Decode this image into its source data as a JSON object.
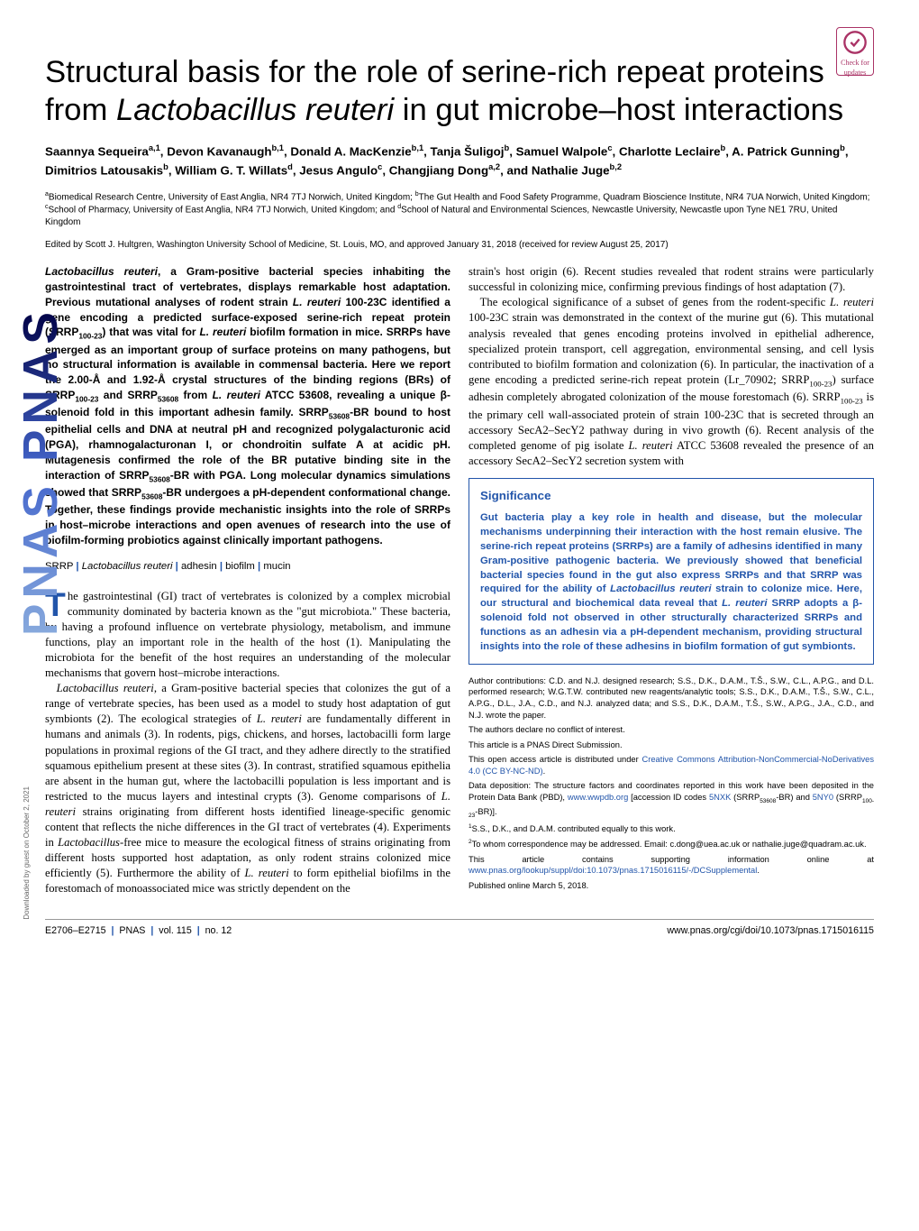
{
  "badge": {
    "line1": "Check for",
    "line2": "updates"
  },
  "pnas_band": "PNAS  PNAS",
  "title_parts": {
    "pre": "Structural basis for the role of serine-rich repeat proteins from ",
    "italic": "Lactobacillus reuteri",
    "post": " in gut microbe–host interactions"
  },
  "authors_html": "Saannya Sequeira<sup>a,1</sup>, Devon Kavanaugh<sup>b,1</sup>, Donald A. MacKenzie<sup>b,1</sup>, Tanja Šuligoj<sup>b</sup>, Samuel Walpole<sup>c</sup>, Charlotte Leclaire<sup>b</sup>, A. Patrick Gunning<sup>b</sup>, Dimitrios Latousakis<sup>b</sup>, William G. T. Willats<sup>d</sup>, Jesus Angulo<sup>c</sup>, Changjiang Dong<sup>a,2</sup>, and Nathalie Juge<sup>b,2</sup>",
  "affiliations_html": "<sup>a</sup>Biomedical Research Centre, University of East Anglia, NR4 7TJ Norwich, United Kingdom; <sup>b</sup>The Gut Health and Food Safety Programme, Quadram Bioscience Institute, NR4 7UA Norwich, United Kingdom; <sup>c</sup>School of Pharmacy, University of East Anglia, NR4 7TJ Norwich, United Kingdom; and <sup>d</sup>School of Natural and Environmental Sciences, Newcastle University, Newcastle upon Tyne NE1 7RU, United Kingdom",
  "edited": "Edited by Scott J. Hultgren, Washington University School of Medicine, St. Louis, MO, and approved January 31, 2018 (received for review August 25, 2017)",
  "abstract_html": "<span class=\"italic\">Lactobacillus reuteri</span>, a Gram-positive bacterial species inhabiting the gastrointestinal tract of vertebrates, displays remarkable host adaptation. Previous mutational analyses of rodent strain <span class=\"italic\">L. reuteri</span> 100-23C identified a gene encoding a predicted surface-exposed serine-rich repeat protein (SRRP<sub>100-23</sub>) that was vital for <span class=\"italic\">L. reuteri</span> biofilm formation in mice. SRRPs have emerged as an important group of surface proteins on many pathogens, but no structural information is available in commensal bacteria. Here we report the 2.00-Å and 1.92-Å crystal structures of the binding regions (BRs) of SRRP<sub>100-23</sub> and SRRP<sub>53608</sub> from <span class=\"italic\">L. reuteri</span> ATCC 53608, revealing a unique β-solenoid fold in this important adhesin family. SRRP<sub>53608</sub>-BR bound to host epithelial cells and DNA at neutral pH and recognized polygalacturonic acid (PGA), rhamnogalacturonan I, or chondroitin sulfate A at acidic pH. Mutagenesis confirmed the role of the BR putative binding site in the interaction of SRRP<sub>53608</sub>-BR with PGA. Long molecular dynamics simulations showed that SRRP<sub>53608</sub>-BR undergoes a pH-dependent conformational change. Together, these findings provide mechanistic insights into the role of SRRPs in host–microbe interactions and open avenues of research into the use of biofilm-forming probiotics against clinically important pathogens.",
  "keywords_html": "SRRP <span class=\"pipe\">|</span> <span class=\"italic\">Lactobacillus reuteri</span> <span class=\"pipe\">|</span> adhesin <span class=\"pipe\">|</span> biofilm <span class=\"pipe\">|</span> mucin",
  "body_left_html": "<p class=\"first\"><span class=\"dropcap\">T</span>he gastrointestinal (GI) tract of vertebrates is colonized by a complex microbial community dominated by bacteria known as the \"gut microbiota.\" These bacteria, by having a profound influence on vertebrate physiology, metabolism, and immune functions, play an important role in the health of the host (1). Manipulating the microbiota for the benefit of the host requires an understanding of the molecular mechanisms that govern host–microbe interactions.</p><p><span class=\"italic\">Lactobacillus reuteri</span>, a Gram-positive bacterial species that colonizes the gut of a range of vertebrate species, has been used as a model to study host adaptation of gut symbionts (2). The ecological strategies of <span class=\"italic\">L. reuteri</span> are fundamentally different in humans and animals (3). In rodents, pigs, chickens, and horses, lactobacilli form large populations in proximal regions of the GI tract, and they adhere directly to the stratified squamous epithelium present at these sites (3). In contrast, stratified squamous epithelia are absent in the human gut, where the lactobacilli population is less important and is restricted to the mucus layers and intestinal crypts (3). Genome comparisons of <span class=\"italic\">L. reuteri</span> strains originating from different hosts identified lineage-specific genomic content that reflects the niche differences in the GI tract of vertebrates (4). Experiments in <span class=\"italic\">Lactobacillus</span>-free mice to measure the ecological fitness of strains originating from different hosts supported host adaptation, as only rodent strains colonized mice efficiently (5). Furthermore the ability of <span class=\"italic\">L. reuteri</span> to form epithelial biofilms in the forestomach of monoassociated mice was strictly dependent on the</p>",
  "body_right_html": "strain's host origin (6). Recent studies revealed that rodent strains were particularly successful in colonizing mice, confirming previous findings of host adaptation (7).<p>The ecological significance of a subset of genes from the rodent-specific <span class=\"italic\">L. reuteri</span> 100-23C strain was demonstrated in the context of the murine gut (6). This mutational analysis revealed that genes encoding proteins involved in epithelial adherence, specialized protein transport, cell aggregation, environmental sensing, and cell lysis contributed to biofilm formation and colonization (6). In particular, the inactivation of a gene encoding a predicted serine-rich repeat protein (Lr_70902; SRRP<sub>100-23</sub>) surface adhesin completely abrogated colonization of the mouse forestomach (6). SRRP<sub>100-23</sub> is the primary cell wall-associated protein of strain 100-23C that is secreted through an accessory SecA2–SecY2 pathway during in vivo growth (6). Recent analysis of the completed genome of pig isolate <span class=\"italic\">L. reuteri</span> ATCC 53608 revealed the presence of an accessory SecA2–SecY2 secretion system with</p>",
  "significance": {
    "heading": "Significance",
    "text_html": "Gut bacteria play a key role in health and disease, but the molecular mechanisms underpinning their interaction with the host remain elusive. The serine-rich repeat proteins (SRRPs) are a family of adhesins identified in many Gram-positive pathogenic bacteria. We previously showed that beneficial bacterial species found in the gut also express SRRPs and that SRRP was required for the ability of <span class=\"italic\">Lactobacillus reuteri</span> strain to colonize mice. Here, our structural and biochemical data reveal that <span class=\"italic\">L. reuteri</span> SRRP adopts a β-solenoid fold not observed in other structurally characterized SRRPs and functions as an adhesin via a pH-dependent mechanism, providing structural insights into the role of these adhesins in biofilm formation of gut symbionts."
  },
  "notes": {
    "contributions": "Author contributions: C.D. and N.J. designed research; S.S., D.K., D.A.M., T.Š., S.W., C.L., A.P.G., and D.L. performed research; W.G.T.W. contributed new reagents/analytic tools; S.S., D.K., D.A.M., T.Š., S.W., C.L., A.P.G., D.L., J.A., C.D., and N.J. analyzed data; and S.S., D.K., D.A.M., T.Š., S.W., A.P.G., J.A., C.D., and N.J. wrote the paper.",
    "coi": "The authors declare no conflict of interest.",
    "direct": "This article is a PNAS Direct Submission.",
    "oa_pre": "This open access article is distributed under ",
    "oa_link": "Creative Commons Attribution-NonCommercial-NoDerivatives 4.0 (CC BY-NC-ND)",
    "deposition_pre": "Data deposition: The structure factors and coordinates reported in this work have been deposited in the Protein Data Bank (PBD), ",
    "deposition_link1": "www.wwpdb.org",
    "deposition_mid": " [accession ID codes ",
    "deposition_link2": "5NXK",
    "deposition_mid2_html": " (SRRP<sub>53608</sub>-BR) and ",
    "deposition_link3": "5NY0",
    "deposition_end_html": " (SRRP<sub>100-23</sub>-BR)].",
    "equal_html": "<sup>1</sup>S.S., D.K., and D.A.M. contributed equally to this work.",
    "corr_html": "<sup>2</sup>To whom correspondence may be addressed. Email: c.dong@uea.ac.uk or nathalie.juge@quadram.ac.uk.",
    "si_pre": "This article contains supporting information online at ",
    "si_link": "www.pnas.org/lookup/suppl/doi:10.1073/pnas.1715016115/-/DCSupplemental",
    "published": "Published online March 5, 2018."
  },
  "footer": {
    "left_html": "E2706–E2715 &nbsp;<span class=\"pipe\">|</span>&nbsp; PNAS &nbsp;<span class=\"pipe\">|</span>&nbsp; vol. 115 &nbsp;<span class=\"pipe\">|</span>&nbsp; no. 12",
    "right": "www.pnas.org/cgi/doi/10.1073/pnas.1715016115"
  },
  "downloaded": "Downloaded by guest on October 2, 2021",
  "colors": {
    "accent": "#2255aa",
    "badge": "#aa3366"
  }
}
